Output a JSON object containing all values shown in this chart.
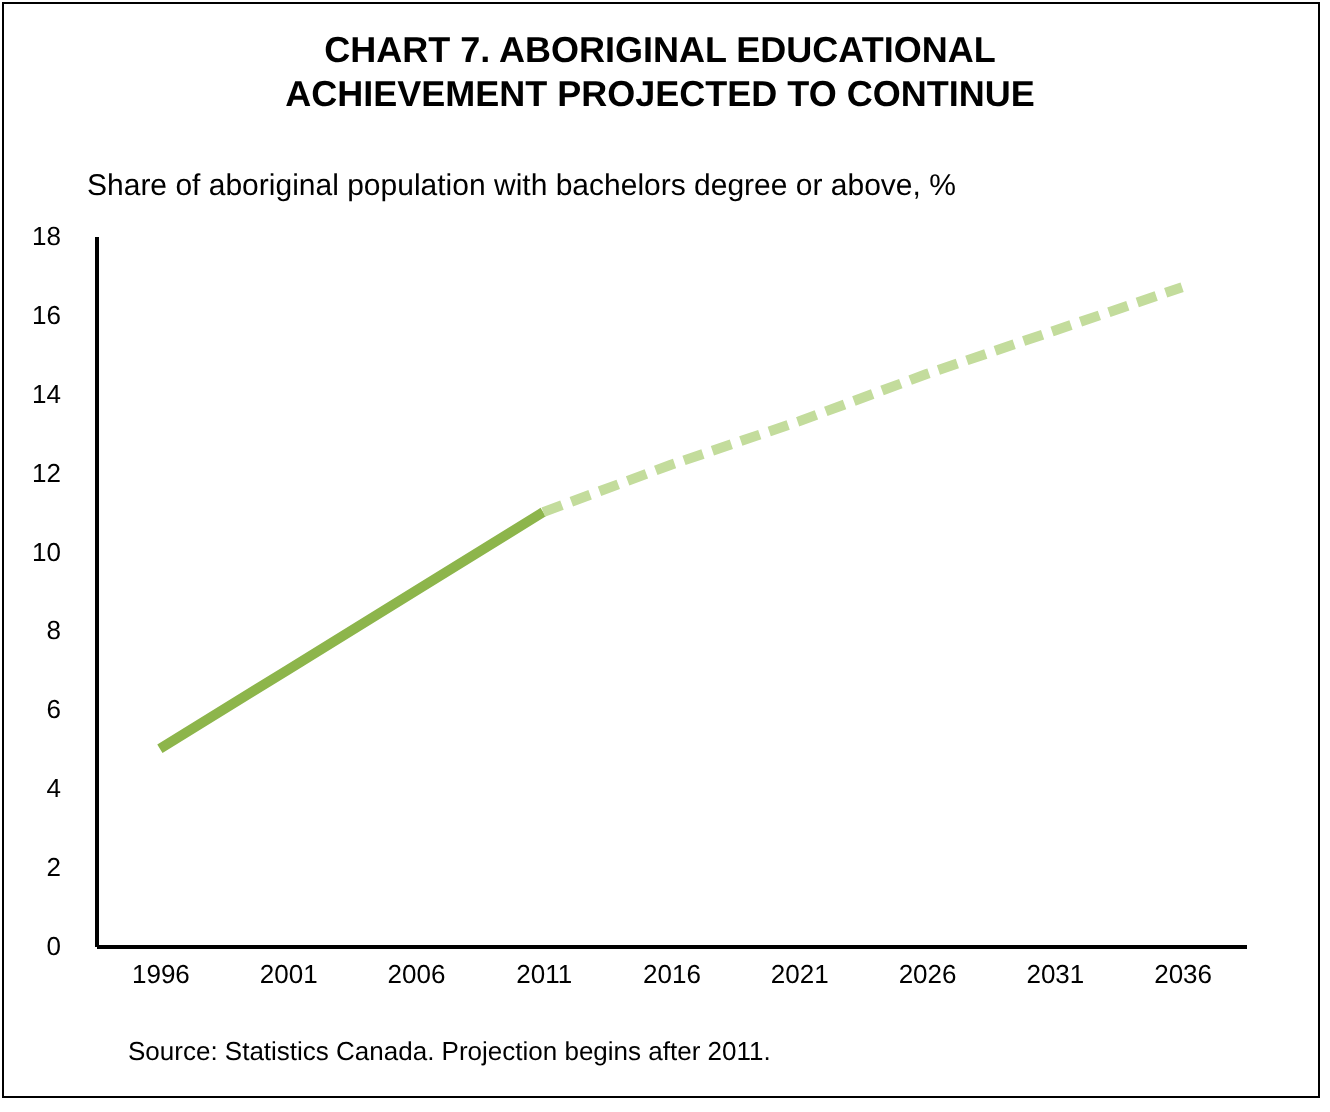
{
  "chart_data": {
    "type": "line",
    "title": "CHART 7. ABORIGINAL EDUCATIONAL ACHIEVEMENT  PROJECTED TO CONTINUE",
    "ylabel": "Share of aboriginal population with bachelors degree or above, %",
    "categories": [
      "1996",
      "2001",
      "2006",
      "2011",
      "2016",
      "2021",
      "2026",
      "2031",
      "2036"
    ],
    "series": [
      {
        "color": "#8db54b",
        "line_style": "solid",
        "values": [
          5,
          7,
          9,
          11,
          null,
          null,
          null,
          null,
          null
        ]
      },
      {
        "color": "#c3dc9c",
        "line_style": "dashed",
        "values": [
          null,
          null,
          null,
          11,
          12.2,
          13.3,
          14.5,
          15.6,
          16.7
        ]
      }
    ],
    "ylim": [
      0,
      18
    ],
    "yticks": [
      0,
      2,
      4,
      6,
      8,
      10,
      12,
      14,
      16,
      18
    ],
    "grid": false,
    "legend": false,
    "marker": "none",
    "annotations": [
      "Source: Statistics Canada. Projection begins after 2011."
    ]
  }
}
